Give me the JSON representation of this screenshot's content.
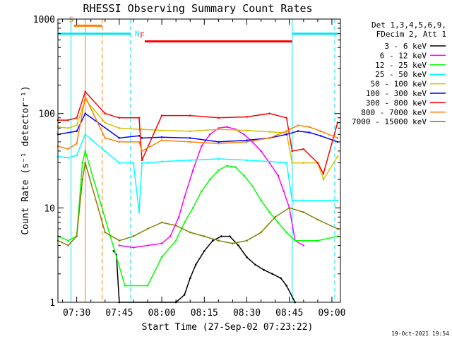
{
  "chart_data": {
    "type": "line",
    "title": "RHESSI Observing Summary Count Rates",
    "xlabel": "Start Time (27-Sep-02 07:23:22)",
    "ylabel": "Count Rate (s⁻¹ detector⁻¹)",
    "y_scale": "log",
    "ylim": [
      1,
      1000
    ],
    "y_ticks": [
      "1",
      "10",
      "100",
      "1000"
    ],
    "x_range_minutes": [
      "07:23:22",
      "09:03:00"
    ],
    "x_ticks": [
      "07:30",
      "07:45",
      "08:00",
      "08:15",
      "08:30",
      "08:45",
      "09:00"
    ],
    "legend_header": [
      "Det 1,3,4,5,6,9,",
      "FDecim 2, Att 1"
    ],
    "legend_position": "right",
    "footer": "19-Oct-2021 19:54",
    "markers": [
      {
        "label": "S",
        "color": "#ff7f00",
        "start": "07:29",
        "end": "07:39",
        "level": 850
      },
      {
        "label": "N",
        "color": "#00e5ee",
        "start": "07:23:22",
        "end": "07:49",
        "level": 700
      },
      {
        "label": "F",
        "color": "#ff0000",
        "start": "07:54",
        "end": "08:46",
        "level": 580
      },
      {
        "label": "",
        "color": "#00e5ee",
        "start": "08:46",
        "end": "09:02",
        "level": 700
      }
    ],
    "vlines": [
      {
        "time": "07:28",
        "color": "#00e5ee",
        "style": "solid"
      },
      {
        "time": "07:33",
        "color": "#ff7f00",
        "style": "solid"
      },
      {
        "time": "07:39",
        "color": "#ff7f00",
        "style": "dashed"
      },
      {
        "time": "07:49",
        "color": "#00e5ee",
        "style": "dashed"
      },
      {
        "time": "08:46",
        "color": "#00e5ee",
        "style": "solid"
      },
      {
        "time": "09:01",
        "color": "#00e5ee",
        "style": "dashed"
      }
    ],
    "series": [
      {
        "name": "3 - 6 keV",
        "color": "#000000",
        "x": [
          "07:43",
          "07:44",
          "07:45",
          "08:05",
          "08:08",
          "08:10",
          "08:12",
          "08:15",
          "08:18",
          "08:21",
          "08:24",
          "08:27",
          "08:30",
          "08:33",
          "08:36",
          "08:39",
          "08:42",
          "08:44",
          "08:47"
        ],
        "y": [
          3.5,
          3.2,
          1.0,
          1.0,
          1.2,
          1.8,
          2.5,
          3.5,
          4.5,
          5.0,
          5.0,
          4.0,
          3.0,
          2.5,
          2.2,
          2.0,
          1.8,
          1.5,
          1.0
        ]
      },
      {
        "name": "6 - 12 keV",
        "color": "#ff00ff",
        "x": [
          "07:45",
          "07:50",
          "07:55",
          "08:00",
          "08:03",
          "08:06",
          "08:08",
          "08:11",
          "08:14",
          "08:17",
          "08:20",
          "08:23",
          "08:26",
          "08:29",
          "08:32",
          "08:35",
          "08:38",
          "08:41",
          "08:43",
          "08:45",
          "08:47",
          "08:50"
        ],
        "y": [
          4.0,
          3.8,
          4.0,
          4.2,
          5.0,
          8.0,
          13,
          25,
          45,
          60,
          70,
          72,
          68,
          60,
          50,
          40,
          30,
          22,
          15,
          10,
          4.5,
          4.0
        ]
      },
      {
        "name": "12 - 25 keV",
        "color": "#00ff00",
        "x": [
          "07:23:22",
          "07:27",
          "07:30",
          "07:32",
          "07:33",
          "07:47",
          "07:55",
          "08:00",
          "08:05",
          "08:08",
          "08:11",
          "08:14",
          "08:17",
          "08:20",
          "08:23",
          "08:26",
          "08:29",
          "08:32",
          "08:35",
          "08:38",
          "08:41",
          "08:44",
          "08:47",
          "08:55",
          "09:02"
        ],
        "y": [
          5.0,
          4.5,
          5.0,
          30,
          40,
          1.5,
          1.5,
          3.0,
          4.5,
          7.0,
          10,
          15,
          20,
          25,
          28,
          27,
          22,
          17,
          12,
          9,
          7,
          5.5,
          4.5,
          4.5,
          5.0
        ]
      },
      {
        "name": "25 - 50 keV",
        "color": "#00ffff",
        "x": [
          "07:23:22",
          "07:27",
          "07:30",
          "07:33",
          "07:40",
          "07:45",
          "07:50",
          "07:52",
          "07:53",
          "07:55",
          "08:00",
          "08:10",
          "08:20",
          "08:30",
          "08:38",
          "08:44",
          "08:46",
          "08:50",
          "09:02"
        ],
        "y": [
          35,
          34,
          36,
          60,
          40,
          30,
          30,
          9,
          30,
          30,
          31,
          32,
          33,
          32,
          31,
          30,
          12,
          12,
          12
        ]
      },
      {
        "name": "50 - 100 keV",
        "color": "#d4c000",
        "x": [
          "07:23:22",
          "07:27",
          "07:30",
          "07:33",
          "07:40",
          "07:45",
          "07:52",
          "07:53",
          "08:00",
          "08:10",
          "08:20",
          "08:30",
          "08:38",
          "08:44",
          "08:46",
          "08:50",
          "08:55",
          "08:57",
          "09:02"
        ],
        "y": [
          72,
          70,
          75,
          140,
          80,
          70,
          68,
          68,
          66,
          65,
          68,
          66,
          64,
          62,
          30,
          30,
          30,
          20,
          35
        ]
      },
      {
        "name": "100 - 300 keV",
        "color": "#0000ff",
        "x": [
          "07:23:22",
          "07:30",
          "07:33",
          "07:45",
          "07:52",
          "07:53",
          "08:00",
          "08:10",
          "08:20",
          "08:30",
          "08:38",
          "08:44",
          "08:48",
          "08:52",
          "08:56",
          "09:02"
        ],
        "y": [
          60,
          65,
          100,
          55,
          58,
          55,
          56,
          55,
          50,
          52,
          55,
          60,
          65,
          63,
          58,
          50
        ]
      },
      {
        "name": "300 - 800 keV",
        "color": "#ff0000",
        "x": [
          "07:23:22",
          "07:27",
          "07:30",
          "07:33",
          "07:40",
          "07:45",
          "07:52",
          "07:53",
          "08:00",
          "08:10",
          "08:20",
          "08:30",
          "08:38",
          "08:44",
          "08:46",
          "08:50",
          "08:55",
          "08:57",
          "09:02"
        ],
        "y": [
          85,
          85,
          90,
          170,
          100,
          90,
          90,
          32,
          95,
          95,
          90,
          92,
          100,
          90,
          40,
          42,
          30,
          23,
          80
        ]
      },
      {
        "name": "800 - 7000 keV",
        "color": "#ff7f00",
        "x": [
          "07:23:22",
          "07:27",
          "07:30",
          "07:33",
          "07:40",
          "07:45",
          "07:52",
          "07:53",
          "08:00",
          "08:10",
          "08:20",
          "08:30",
          "08:38",
          "08:44",
          "08:48",
          "08:52",
          "08:56",
          "09:02"
        ],
        "y": [
          45,
          42,
          48,
          150,
          55,
          50,
          50,
          40,
          52,
          50,
          48,
          50,
          55,
          65,
          75,
          72,
          65,
          55
        ]
      },
      {
        "name": "7000 - 15000 keV",
        "color": "#808000",
        "x": [
          "07:23:22",
          "07:27",
          "07:30",
          "07:32",
          "07:33",
          "07:40",
          "07:45",
          "07:50",
          "07:55",
          "08:00",
          "08:05",
          "08:10",
          "08:15",
          "08:20",
          "08:25",
          "08:30",
          "08:35",
          "08:40",
          "08:45",
          "08:50",
          "08:55",
          "09:02"
        ],
        "y": [
          4.5,
          4.0,
          5.0,
          20,
          30,
          5.5,
          4.5,
          5.0,
          6.0,
          7.0,
          6.5,
          5.5,
          5.0,
          4.5,
          4.2,
          4.5,
          5.5,
          8.0,
          10,
          9.0,
          7.5,
          6.0
        ]
      }
    ]
  }
}
